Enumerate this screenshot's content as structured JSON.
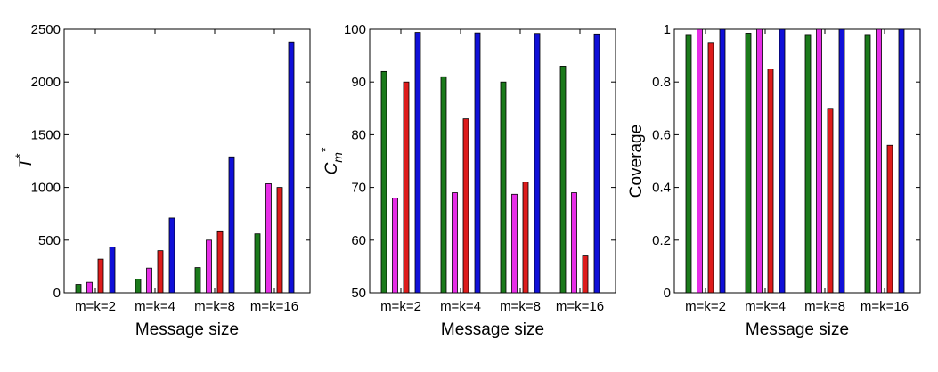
{
  "chart_data": [
    {
      "type": "bar",
      "categories": [
        "m=k=2",
        "m=k=4",
        "m=k=8",
        "m=k=16"
      ],
      "series": [
        {
          "color": "#1b7a1b",
          "values": [
            80,
            130,
            240,
            560
          ]
        },
        {
          "color": "#e62ee6",
          "values": [
            100,
            235,
            500,
            1035
          ]
        },
        {
          "color": "#dd1c1c",
          "values": [
            320,
            400,
            580,
            1000
          ]
        },
        {
          "color": "#1010d8",
          "values": [
            435,
            710,
            1290,
            2380
          ]
        }
      ],
      "xlabel": "Message size",
      "ylabel": "T*",
      "ylim": [
        0,
        2500
      ],
      "yticks": [
        0,
        500,
        1000,
        1500,
        2000,
        2500
      ],
      "ytick_labels": [
        "0",
        "500",
        "1000",
        "1500",
        "2000",
        "2500"
      ],
      "grid": false
    },
    {
      "type": "bar",
      "categories": [
        "m=k=2",
        "m=k=4",
        "m=k=8",
        "m=k=16"
      ],
      "series": [
        {
          "color": "#1b7a1b",
          "values": [
            92,
            91,
            90,
            93
          ]
        },
        {
          "color": "#e62ee6",
          "values": [
            68,
            69,
            68.7,
            69
          ]
        },
        {
          "color": "#dd1c1c",
          "values": [
            90,
            83,
            71,
            57
          ]
        },
        {
          "color": "#1010d8",
          "values": [
            99.4,
            99.3,
            99.2,
            99.1
          ]
        }
      ],
      "xlabel": "Message size",
      "ylabel": "C_m*",
      "ylim": [
        50,
        100
      ],
      "yticks": [
        50,
        60,
        70,
        80,
        90,
        100
      ],
      "ytick_labels": [
        "50",
        "60",
        "70",
        "80",
        "90",
        "100"
      ],
      "grid": false
    },
    {
      "type": "bar",
      "categories": [
        "m=k=2",
        "m=k=4",
        "m=k=8",
        "m=k=16"
      ],
      "series": [
        {
          "color": "#1b7a1b",
          "values": [
            0.98,
            0.985,
            0.98,
            0.98
          ]
        },
        {
          "color": "#e62ee6",
          "values": [
            1,
            1,
            1,
            1
          ]
        },
        {
          "color": "#dd1c1c",
          "values": [
            0.95,
            0.85,
            0.7,
            0.56
          ]
        },
        {
          "color": "#1010d8",
          "values": [
            1,
            1,
            1,
            1
          ]
        }
      ],
      "xlabel": "Message size",
      "ylabel": "Coverage",
      "ylim": [
        0,
        1
      ],
      "yticks": [
        0,
        0.2,
        0.4,
        0.6,
        0.8,
        1
      ],
      "ytick_labels": [
        "0",
        "0.2",
        "0.4",
        "0.6",
        "0.8",
        "1"
      ],
      "grid": false
    }
  ]
}
